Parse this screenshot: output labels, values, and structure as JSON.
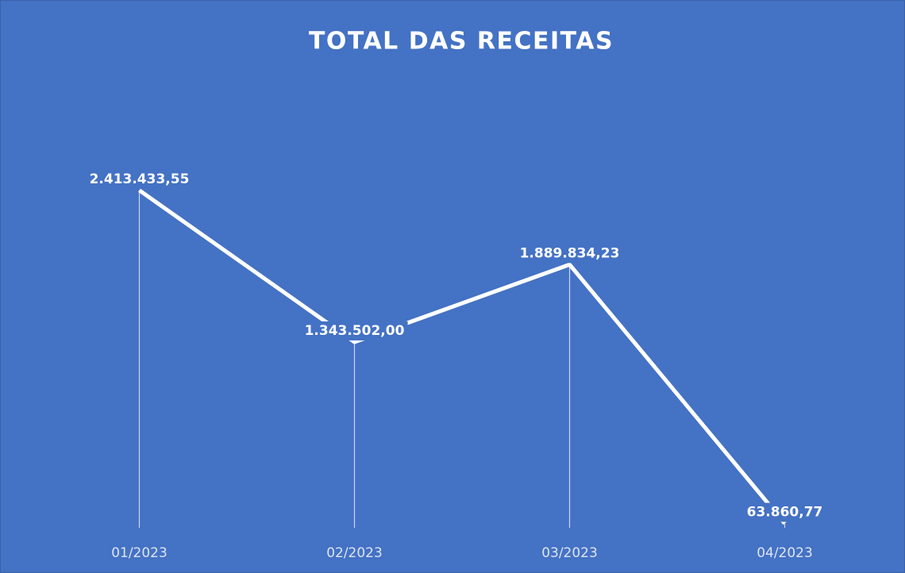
{
  "chart_data": {
    "type": "line",
    "title": "TOTAL DAS RECEITAS",
    "categories": [
      "01/2023",
      "02/2023",
      "03/2023",
      "04/2023"
    ],
    "values": [
      2413433.55,
      1343502.0,
      1889834.23,
      63860.77
    ],
    "value_labels": [
      "2.413.433,55",
      "1.343.502,00",
      "1.889.834,23",
      "63.860,77"
    ],
    "color": "#ffffff",
    "background": "#4472c4",
    "drop_lines": true
  }
}
